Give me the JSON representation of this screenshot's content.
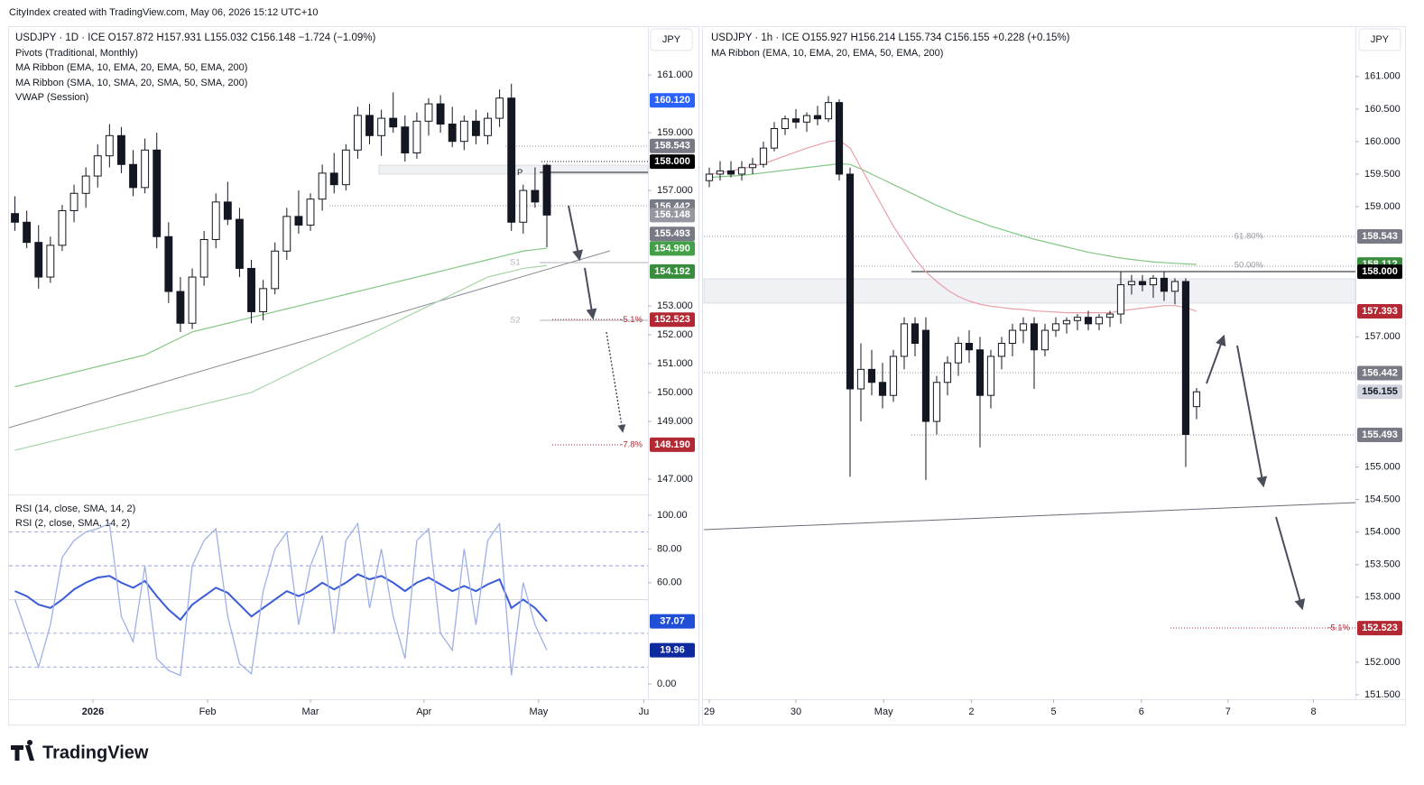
{
  "header": {
    "credit": "CityIndex created with TradingView.com, May 06, 2026 15:12 UTC+10",
    "brand": "TradingView"
  },
  "chart_data": [
    {
      "type": "candlestick",
      "title": "USDJPY · 1D · ICE   O157.872  H157.931  L155.032  C156.148  −1.724 (−1.09%)",
      "indicators": [
        "Pivots (Traditional, Monthly)",
        "MA Ribbon (EMA, 10, EMA, 20, EMA, 50, EMA, 200)",
        "MA Ribbon (SMA, 10, SMA, 20, SMA, 50, SMA, 200)",
        "VWAP (Session)"
      ],
      "currency": "JPY",
      "open": [
        156.2,
        155.9,
        155.2,
        154.0,
        155.1,
        156.3,
        156.9,
        157.5,
        158.2,
        158.9,
        157.9,
        157.1,
        158.4,
        155.4,
        153.5,
        152.4,
        154.0,
        155.3,
        156.6,
        156.0,
        154.3,
        152.8,
        153.6,
        154.9,
        156.1,
        155.8,
        156.7,
        157.6,
        157.2,
        158.4,
        159.6,
        158.9,
        159.5,
        159.2,
        158.3,
        159.4,
        160.0,
        159.3,
        158.7,
        159.4,
        158.9,
        159.5,
        160.2,
        155.9,
        157.0,
        157.872
      ],
      "high": [
        156.8,
        156.3,
        155.8,
        155.4,
        156.5,
        157.2,
        157.8,
        158.6,
        159.3,
        159.2,
        158.4,
        158.8,
        159.0,
        155.9,
        154.0,
        154.3,
        155.6,
        156.9,
        157.3,
        156.4,
        154.6,
        153.9,
        155.2,
        156.4,
        157.0,
        156.9,
        157.9,
        158.3,
        158.6,
        159.9,
        160.0,
        159.8,
        160.4,
        159.6,
        159.7,
        160.2,
        160.3,
        159.9,
        159.6,
        159.8,
        159.7,
        160.5,
        160.7,
        157.2,
        157.8,
        157.931
      ],
      "low": [
        155.6,
        155.0,
        153.6,
        153.8,
        154.9,
        155.9,
        156.4,
        157.1,
        157.8,
        157.6,
        156.8,
        156.9,
        155.0,
        153.1,
        152.1,
        152.2,
        153.7,
        155.0,
        155.8,
        154.0,
        152.4,
        152.5,
        153.4,
        154.6,
        155.5,
        155.6,
        156.3,
        156.9,
        157.0,
        158.1,
        158.6,
        158.2,
        159.0,
        158.0,
        158.1,
        158.9,
        159.0,
        158.5,
        158.4,
        158.6,
        158.6,
        159.2,
        155.6,
        155.5,
        156.4,
        155.032
      ],
      "close": [
        155.9,
        155.2,
        154.0,
        155.1,
        156.3,
        156.9,
        157.5,
        158.2,
        158.9,
        157.9,
        157.1,
        158.4,
        155.4,
        153.5,
        152.4,
        154.0,
        155.3,
        156.6,
        156.0,
        154.3,
        152.8,
        153.6,
        154.9,
        156.1,
        155.8,
        156.7,
        157.6,
        157.2,
        158.4,
        159.6,
        158.9,
        159.5,
        159.2,
        158.3,
        159.4,
        160.0,
        159.3,
        158.7,
        159.4,
        158.9,
        159.5,
        160.2,
        155.9,
        157.0,
        156.6,
        156.148
      ],
      "ma_lines": [
        {
          "color": "#81c784",
          "values": [
            150.2,
            150.3,
            150.4,
            150.5,
            150.6,
            150.7,
            150.8,
            150.9,
            151.0,
            151.1,
            151.2,
            151.3,
            151.5,
            151.7,
            151.9,
            152.1,
            152.2,
            152.3,
            152.4,
            152.5,
            152.6,
            152.7,
            152.8,
            152.9,
            153.0,
            153.1,
            153.2,
            153.3,
            153.4,
            153.5,
            153.6,
            153.7,
            153.8,
            153.9,
            154.0,
            154.1,
            154.2,
            154.3,
            154.4,
            154.5,
            154.6,
            154.7,
            154.8,
            154.9,
            154.95,
            155.0
          ]
        },
        {
          "color": "#a5d6a7",
          "values": [
            148.0,
            148.1,
            148.2,
            148.3,
            148.4,
            148.5,
            148.6,
            148.7,
            148.8,
            148.9,
            149.0,
            149.1,
            149.2,
            149.3,
            149.4,
            149.5,
            149.6,
            149.7,
            149.8,
            149.9,
            150.0,
            150.2,
            150.4,
            150.6,
            150.8,
            151.0,
            151.2,
            151.4,
            151.6,
            151.8,
            152.0,
            152.2,
            152.4,
            152.6,
            152.8,
            153.0,
            153.2,
            153.4,
            153.6,
            153.8,
            154.0,
            154.1,
            154.2,
            154.3,
            154.35,
            154.4
          ]
        }
      ],
      "xlim": [
        -0.5,
        53.55
      ],
      "ylim": [
        146.5,
        162.66
      ],
      "xticks": [
        {
          "value": 6.6,
          "label": "2026"
        },
        {
          "value": 16.3,
          "label": "Feb"
        },
        {
          "value": 25.0,
          "label": "Mar"
        },
        {
          "value": 34.6,
          "label": "Apr"
        },
        {
          "value": 44.3,
          "label": "May"
        },
        {
          "value": 53.2,
          "label": "Ju"
        }
      ],
      "yticks": [
        {
          "value": 161,
          "label": "161.000"
        },
        {
          "value": 159,
          "label": "159.000"
        },
        {
          "value": 157,
          "label": "157.000"
        },
        {
          "value": 153,
          "label": "153.000"
        },
        {
          "value": 152,
          "label": "152.000"
        },
        {
          "value": 151,
          "label": "151.000"
        },
        {
          "value": 150,
          "label": "150.000"
        },
        {
          "value": 149,
          "label": "149.000"
        },
        {
          "value": 147,
          "label": "147.000"
        }
      ],
      "price_tags": [
        {
          "value": 160.12,
          "label": "160.120",
          "color": "#2962ff"
        },
        {
          "value": 158.543,
          "label": "158.543",
          "color": "#787b86"
        },
        {
          "value": 158.0,
          "label": "158.000",
          "color": "#000000"
        },
        {
          "value": 156.442,
          "label": "156.442",
          "color": "#787b86"
        },
        {
          "value": 156.148,
          "label": "156.148",
          "color": "#9598a1"
        },
        {
          "value": 155.493,
          "label": "155.493",
          "color": "#787b86"
        },
        {
          "value": 154.99,
          "label": "154.990",
          "color": "#43a047"
        },
        {
          "value": 154.192,
          "label": "154.192",
          "color": "#388e3c"
        },
        {
          "value": 152.523,
          "label": "152.523",
          "color": "#b22833"
        },
        {
          "value": 148.19,
          "label": "148.190",
          "color": "#b22833"
        }
      ],
      "annotations": [
        {
          "label": "P",
          "value": 157.62,
          "color": "#131722"
        },
        {
          "label": "S1",
          "value": 154.5,
          "color": "#b2b5be"
        },
        {
          "label": "S2",
          "value": 152.5,
          "color": "#b2b5be"
        },
        {
          "label": "-5.1%",
          "value": 152.523,
          "color": "#b22833"
        },
        {
          "label": "-7.8%",
          "value": 148.19,
          "color": "#b22833"
        }
      ]
    },
    {
      "type": "line",
      "series": [
        {
          "name": "RSI (14, close, SMA, 14, 2)",
          "color": "#3a5bd9",
          "values": [
            55,
            52,
            47,
            45,
            50,
            56,
            60,
            63,
            64,
            60,
            57,
            61,
            52,
            44,
            38,
            47,
            52,
            57,
            54,
            47,
            40,
            45,
            50,
            55,
            52,
            55,
            60,
            56,
            60,
            65,
            62,
            64,
            60,
            55,
            60,
            63,
            59,
            55,
            58,
            55,
            59,
            62,
            45,
            50,
            45,
            37.07
          ]
        },
        {
          "name": "RSI (2, close, SMA, 14, 2)",
          "color": "#9fb0e6",
          "values": [
            50,
            30,
            10,
            35,
            75,
            85,
            90,
            92,
            95,
            40,
            25,
            70,
            15,
            8,
            5,
            70,
            85,
            92,
            40,
            12,
            6,
            55,
            80,
            90,
            35,
            70,
            88,
            30,
            85,
            95,
            45,
            80,
            40,
            15,
            85,
            92,
            30,
            20,
            80,
            35,
            85,
            95,
            5,
            60,
            35,
            19.96
          ]
        }
      ],
      "xlim": [
        -0.5,
        53.55
      ],
      "ylim": [
        -9.1,
        111.2
      ],
      "yticks": [
        {
          "value": 100,
          "label": "100.00"
        },
        {
          "value": 80,
          "label": "80.00"
        },
        {
          "value": 60,
          "label": "60.00"
        },
        {
          "value": 0,
          "label": "0.00"
        }
      ],
      "levels": [
        90,
        70,
        50,
        30,
        10
      ],
      "price_tags": [
        {
          "value": 37.07,
          "label": "37.07",
          "color": "#1f4fd6"
        },
        {
          "value": 19.96,
          "label": "19.96",
          "color": "#0d2a9e"
        }
      ]
    },
    {
      "type": "candlestick",
      "title": "USDJPY · 1h · ICE   O155.927  H156.214  L155.734  C156.155  +0.228 (+0.15%)",
      "indicators": [
        "MA Ribbon (EMA, 10, EMA, 20, EMA, 50, EMA, 200)"
      ],
      "currency": "JPY",
      "open": [
        159.4,
        159.5,
        159.55,
        159.5,
        159.6,
        159.65,
        159.9,
        160.2,
        160.35,
        160.3,
        160.4,
        160.35,
        160.6,
        159.5,
        156.2,
        156.5,
        156.3,
        156.1,
        156.7,
        157.2,
        157.1,
        155.7,
        156.3,
        156.6,
        156.9,
        156.8,
        156.1,
        156.7,
        156.9,
        157.1,
        157.2,
        156.8,
        157.1,
        157.2,
        157.25,
        157.3,
        157.2,
        157.3,
        157.35,
        157.8,
        157.85,
        157.8,
        157.9,
        157.7,
        157.85,
        155.927
      ],
      "high": [
        159.6,
        159.7,
        159.7,
        159.7,
        159.75,
        160.0,
        160.3,
        160.4,
        160.5,
        160.45,
        160.55,
        160.7,
        160.65,
        159.6,
        156.9,
        156.8,
        156.6,
        156.8,
        157.3,
        157.3,
        157.3,
        156.4,
        156.7,
        157.0,
        157.1,
        157.0,
        156.8,
        157.0,
        157.2,
        157.3,
        157.3,
        157.2,
        157.3,
        157.3,
        157.35,
        157.4,
        157.35,
        157.4,
        158.0,
        157.95,
        157.95,
        157.95,
        158.0,
        157.9,
        157.9,
        156.214
      ],
      "low": [
        159.3,
        159.4,
        159.45,
        159.4,
        159.5,
        159.6,
        159.85,
        160.1,
        160.2,
        160.15,
        160.25,
        160.3,
        159.4,
        154.85,
        155.7,
        156.1,
        155.9,
        156.0,
        156.5,
        156.7,
        154.8,
        155.5,
        156.1,
        156.4,
        156.6,
        155.3,
        155.9,
        156.5,
        156.7,
        156.9,
        156.2,
        156.7,
        157.0,
        157.05,
        157.1,
        157.1,
        157.1,
        157.15,
        157.2,
        157.65,
        157.7,
        157.6,
        157.55,
        157.5,
        155.0,
        155.734
      ],
      "close": [
        159.5,
        159.55,
        159.5,
        159.6,
        159.65,
        159.9,
        160.2,
        160.35,
        160.3,
        160.4,
        160.35,
        160.6,
        159.5,
        156.2,
        156.5,
        156.3,
        156.1,
        156.7,
        157.2,
        156.9,
        155.7,
        156.3,
        156.6,
        156.9,
        156.8,
        156.1,
        156.7,
        156.9,
        157.1,
        157.2,
        156.8,
        157.1,
        157.2,
        157.25,
        157.3,
        157.2,
        157.3,
        157.35,
        157.8,
        157.85,
        157.8,
        157.9,
        157.7,
        157.85,
        155.5,
        156.155
      ],
      "ma_lines": [
        {
          "color": "#81c784",
          "values": [
            159.45,
            159.46,
            159.47,
            159.48,
            159.5,
            159.52,
            159.54,
            159.56,
            159.58,
            159.6,
            159.62,
            159.64,
            159.66,
            159.65,
            159.58,
            159.5,
            159.42,
            159.34,
            159.26,
            159.18,
            159.1,
            159.02,
            158.95,
            158.88,
            158.82,
            158.76,
            158.7,
            158.65,
            158.6,
            158.55,
            158.5,
            158.46,
            158.42,
            158.38,
            158.34,
            158.3,
            158.27,
            158.24,
            158.21,
            158.19,
            158.17,
            158.15,
            158.14,
            158.13,
            158.12,
            158.112
          ]
        },
        {
          "color": "#e8a0a8",
          "values": [
            159.5,
            159.52,
            159.55,
            159.58,
            159.62,
            159.66,
            159.72,
            159.78,
            159.84,
            159.9,
            159.95,
            160.0,
            160.02,
            159.9,
            159.6,
            159.3,
            159.0,
            158.7,
            158.45,
            158.2,
            158.0,
            157.85,
            157.72,
            157.62,
            157.55,
            157.5,
            157.47,
            157.45,
            157.43,
            157.42,
            157.4,
            157.39,
            157.38,
            157.37,
            157.37,
            157.37,
            157.37,
            157.37,
            157.4,
            157.42,
            157.44,
            157.46,
            157.48,
            157.48,
            157.45,
            157.393
          ]
        }
      ],
      "xlim": [
        -0.5,
        59.67
      ],
      "ylim": [
        151.43,
        161.76
      ],
      "xticks": [
        {
          "value": 0,
          "label": "29"
        },
        {
          "value": 8,
          "label": "30"
        },
        {
          "value": 16.1,
          "label": "May"
        },
        {
          "value": 24.2,
          "label": "2"
        },
        {
          "value": 31.8,
          "label": "5"
        },
        {
          "value": 39.9,
          "label": "6"
        },
        {
          "value": 47.9,
          "label": "7"
        },
        {
          "value": 55.8,
          "label": "8"
        }
      ],
      "yticks": [
        {
          "value": 161,
          "label": "161.000"
        },
        {
          "value": 160.5,
          "label": "160.500"
        },
        {
          "value": 160,
          "label": "160.000"
        },
        {
          "value": 159.5,
          "label": "159.500"
        },
        {
          "value": 159,
          "label": "159.000"
        },
        {
          "value": 157,
          "label": "157.000"
        },
        {
          "value": 155,
          "label": "155.000"
        },
        {
          "value": 154.5,
          "label": "154.500"
        },
        {
          "value": 154,
          "label": "154.000"
        },
        {
          "value": 153.5,
          "label": "153.500"
        },
        {
          "value": 153,
          "label": "153.000"
        },
        {
          "value": 152,
          "label": "152.000"
        },
        {
          "value": 151.5,
          "label": "151.500"
        }
      ],
      "price_tags": [
        {
          "value": 158.543,
          "label": "158.543",
          "color": "#787b86"
        },
        {
          "value": 158.112,
          "label": "158.112",
          "color": "#388e3c"
        },
        {
          "value": 158.0,
          "label": "158.000",
          "color": "#000000"
        },
        {
          "value": 157.393,
          "label": "157.393",
          "color": "#b22833"
        },
        {
          "value": 156.442,
          "label": "156.442",
          "color": "#787b86"
        },
        {
          "value": 156.155,
          "label": "156.155",
          "color": "#d1d4dc"
        },
        {
          "value": 155.493,
          "label": "155.493",
          "color": "#787b86"
        },
        {
          "value": 152.523,
          "label": "152.523",
          "color": "#b22833"
        }
      ],
      "annotations": [
        {
          "label": "61.80%",
          "value": 158.543,
          "color": "#9598a1"
        },
        {
          "label": "50.00%",
          "value": 158.1,
          "color": "#9598a1"
        },
        {
          "label": "-5.1%",
          "value": 152.523,
          "color": "#b22833"
        }
      ]
    }
  ]
}
